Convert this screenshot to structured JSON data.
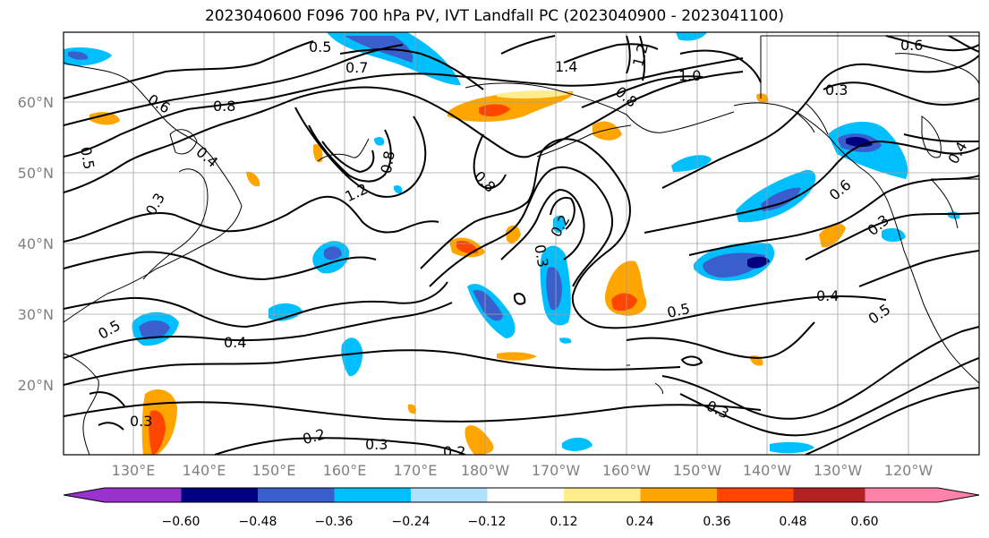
{
  "title": "2023040600 F096 700 hPa PV, IVT Landfall PC (2023040900 - 2023041100)",
  "lat_labels": [
    "60°N",
    "50°N",
    "40°N",
    "30°N",
    "20°N"
  ],
  "lon_labels": [
    "130°E",
    "140°E",
    "150°E",
    "160°E",
    "170°E",
    "180°W",
    "170°W",
    "160°W",
    "150°W",
    "140°W",
    "130°W",
    "120°W"
  ],
  "contour_labels": [
    "0.5",
    "0.7",
    "1.4",
    "1.2",
    "1.0",
    "0.6",
    "0.6",
    "0.8",
    "0.8",
    "0.3",
    "0.5",
    "0.4",
    "0.8",
    "1.2",
    "0.8",
    "0.3",
    "0.4",
    "0.3",
    "0.2",
    "0.6",
    "0.3",
    "0.5",
    "0.4",
    "0.5",
    "0.5",
    "0.4",
    "0.3",
    "0.3",
    "0.2",
    "0.3",
    "0.2"
  ],
  "colorbar": {
    "tick_labels": [
      "−0.60",
      "−0.48",
      "−0.36",
      "−0.24",
      "−0.12",
      "0.12",
      "0.24",
      "0.36",
      "0.48",
      "0.60"
    ],
    "colors": [
      "#9932cc",
      "#000080",
      "#3a5fcd",
      "#00bfff",
      "#b0e2ff",
      "#ffffff",
      "#ffec8b",
      "#ffa500",
      "#ff4500",
      "#b22222",
      "#ff82ab"
    ]
  }
}
